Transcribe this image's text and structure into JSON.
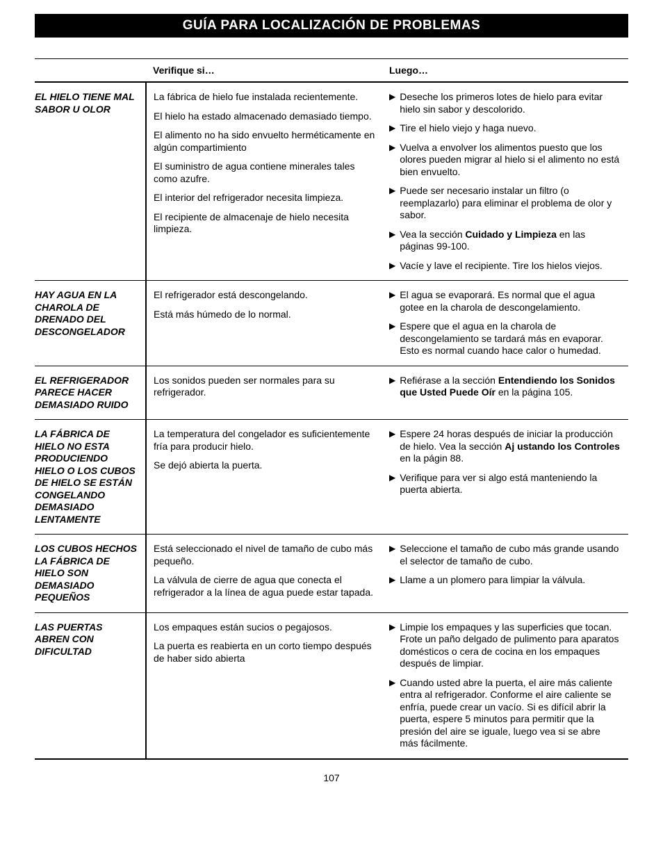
{
  "title": "GUÍA PARA LOCALIZACIÓN DE PROBLEMAS",
  "headers": {
    "problem": "",
    "check": "Verifique si…",
    "then": "Luego…"
  },
  "page_number": "107",
  "colors": {
    "title_bg": "#000000",
    "title_fg": "#ffffff",
    "text": "#000000",
    "background": "#ffffff",
    "rule": "#000000"
  },
  "rows": [
    {
      "problem": "EL HIELO TIENE MAL SABOR U OLOR",
      "pairs": [
        {
          "check": "La fábrica de hielo fue instalada recientemente.",
          "then": "Deseche los primeros lotes de hielo para evitar hielo sin sabor y descolorido."
        },
        {
          "check": "El hielo ha estado almacenado demasiado tiempo.",
          "then": "Tire el hielo viejo y haga nuevo."
        },
        {
          "check": "El alimento no ha sido envuelto herméticamente en algún compartimiento",
          "then": "Vuelva a envolver los alimentos puesto que los olores pueden migrar al hielo si el alimento no está bien envuelto."
        },
        {
          "check": "El suministro de agua contiene minerales tales como azufre.",
          "then": "Puede ser necesario instalar un filtro (o reemplazarlo) para eliminar el problema de olor y sabor."
        },
        {
          "check": "El interior del refrigerador necesita limpieza.",
          "then_html": "Vea la sección <b class=\"inline\">Cuidado y Limpieza</b> en las páginas 99-100."
        },
        {
          "check": "El recipiente de almacenaje de hielo necesita limpieza.",
          "then": "Vacíe y lave el recipiente. Tire los hielos viejos."
        }
      ]
    },
    {
      "problem": "HAY AGUA EN LA CHAROLA DE DRENADO DEL DESCONGELADOR",
      "pairs": [
        {
          "check": "El refrigerador está descongelando.",
          "then": "El agua se evaporará. Es normal que el agua gotee en la charola de descongelamiento."
        },
        {
          "check": "Está más húmedo de lo normal.",
          "then": "Espere que el agua en la charola de descongelamiento se tardará más en evaporar. Esto es normal cuando hace calor o humedad."
        }
      ]
    },
    {
      "problem": "EL REFRIGERADOR PARECE HACER DEMASIADO RUIDO",
      "pairs": [
        {
          "check": "Los sonidos pueden ser normales para su refrigerador.",
          "then_html": "Refiérase a la sección <b class=\"inline\">Entendiendo los Sonidos que Usted Puede Oír</b> en la página 105."
        }
      ]
    },
    {
      "problem": "LA FÁBRICA DE HIELO NO ESTA PRODUCIENDO HIELO O LOS CUBOS DE HIELO SE ESTÁN CONGELANDO DEMASIADO LENTAMENTE",
      "pairs": [
        {
          "check": "La temperatura del congelador es suficientemente fría para producir hielo.",
          "then_html": "Espere 24 horas después de iniciar la producción de hielo. Vea la sección <b class=\"inline\">Aj ustando los Controles</b> en la págin 88."
        },
        {
          "check": "Se dejó abierta la puerta.",
          "then": "Verifique para ver si algo está manteniendo la puerta abierta."
        }
      ]
    },
    {
      "problem": "LOS CUBOS HECHOS LA FÁBRICA DE HIELO SON DEMASIADO PEQUEÑOS",
      "pairs": [
        {
          "check": "Está seleccionado el nivel de tamaño de cubo más pequeño.",
          "then": "Seleccione el tamaño de cubo más grande usando el selector de tamaño de cubo."
        },
        {
          "check": "La válvula de cierre de agua que conecta el refrigerador a la línea de agua puede estar tapada.",
          "then": "Llame a un plomero para limpiar la válvula."
        }
      ]
    },
    {
      "problem": "LAS PUERTAS ABREN CON DIFICULTAD",
      "pairs": [
        {
          "check": "Los empaques están sucios o pegajosos.",
          "then": "Limpie los empaques y las superficies que tocan. Frote un paño delgado de pulimento para aparatos domésticos o cera de cocina en los empaques después de limpiar."
        },
        {
          "check": "La puerta es reabierta en un corto tiempo después de haber sido abierta",
          "then": "Cuando usted abre la puerta, el aire más caliente entra al refrigerador. Conforme el aire caliente se enfría, puede crear un vacío. Si es difícil abrir la puerta, espere 5 minutos para permitir que la presión del aire se iguale, luego vea si se abre más fácilmente."
        }
      ]
    }
  ]
}
